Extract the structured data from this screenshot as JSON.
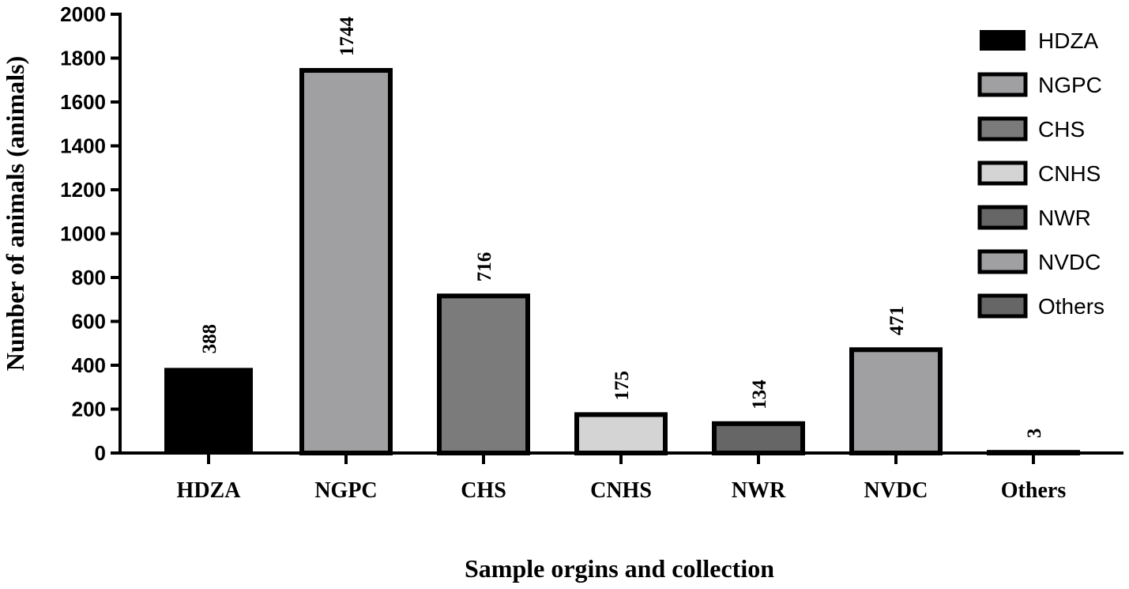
{
  "chart_data": {
    "type": "bar",
    "categories": [
      "HDZA",
      "NGPC",
      "CHS",
      "CNHS",
      "NWR",
      "NVDC",
      "Others"
    ],
    "values": [
      388,
      1744,
      716,
      175,
      134,
      471,
      3
    ],
    "data_labels": [
      "388",
      "1744",
      "716",
      "175",
      "134",
      "471",
      "3"
    ],
    "colors": [
      "#000000",
      "#a0a0a3",
      "#7b7b7b",
      "#d4d4d4",
      "#666666",
      "#a0a0a3",
      "#666666"
    ],
    "xlabel": "Sample orgins and collection",
    "ylabel": "Number of animals (animals)",
    "ylim": [
      0,
      2000
    ],
    "yticks": [
      0,
      200,
      400,
      600,
      800,
      1000,
      1200,
      1400,
      1600,
      1800,
      2000
    ],
    "ytick_labels": [
      "0",
      "200",
      "400",
      "600",
      "800",
      "1000",
      "1200",
      "1400",
      "1600",
      "1800",
      "2000"
    ],
    "legend": {
      "position": "top-right",
      "entries": [
        "HDZA",
        "NGPC",
        "CHS",
        "CNHS",
        "NWR",
        "NVDC",
        "Others"
      ]
    },
    "grid": false
  }
}
